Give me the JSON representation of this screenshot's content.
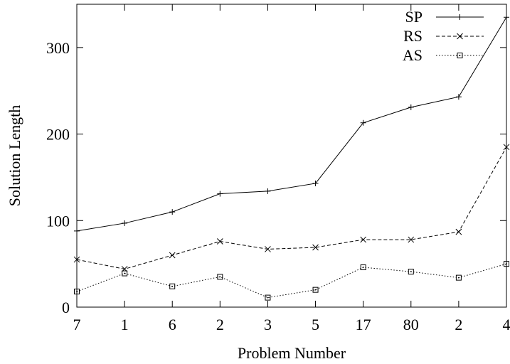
{
  "chart_data": {
    "type": "line",
    "title": "",
    "xlabel": "Problem Number",
    "ylabel": "Solution Length",
    "categories": [
      "7",
      "1",
      "6",
      "2",
      "3",
      "5",
      "17",
      "80",
      "2",
      "4"
    ],
    "yticks": [
      0,
      100,
      200,
      300
    ],
    "ylim": [
      0,
      350
    ],
    "grid": false,
    "legend_position": "top-right",
    "series": [
      {
        "name": "SP",
        "style": "solid",
        "marker": "plus",
        "values": [
          88,
          97,
          110,
          131,
          134,
          143,
          213,
          231,
          243,
          335
        ]
      },
      {
        "name": "RS",
        "style": "dashed",
        "marker": "cross",
        "values": [
          55,
          44,
          60,
          76,
          67,
          69,
          78,
          78,
          87,
          185
        ]
      },
      {
        "name": "AS",
        "style": "dotted",
        "marker": "square",
        "values": [
          18,
          39,
          24,
          35,
          11,
          20,
          46,
          41,
          34,
          50
        ]
      }
    ]
  }
}
